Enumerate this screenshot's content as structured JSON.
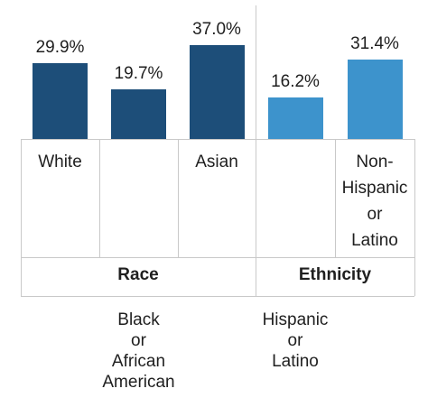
{
  "chart_data": {
    "type": "bar",
    "categories": [
      "White",
      "Black or African American",
      "Asian",
      "Hispanic or Latino",
      "Non-Hispanic or Latino"
    ],
    "category_label_lines": [
      [
        "White"
      ],
      [
        "Black",
        "or",
        "African",
        "American"
      ],
      [
        "Asian"
      ],
      [
        "Hispanic",
        "or",
        "Latino"
      ],
      [
        "Non-",
        "Hispanic",
        "or",
        "Latino"
      ]
    ],
    "values": [
      29.9,
      19.7,
      37.0,
      16.2,
      31.4
    ],
    "value_labels": [
      "29.9%",
      "19.7%",
      "37.0%",
      "16.2%",
      "31.4%"
    ],
    "groups": [
      {
        "name": "Race",
        "categories": [
          "White",
          "Black or African American",
          "Asian"
        ]
      },
      {
        "name": "Ethnicity",
        "categories": [
          "Hispanic or Latino",
          "Non-Hispanic or Latino"
        ]
      }
    ],
    "colors": [
      "#1d4e79",
      "#1d4e79",
      "#1d4e79",
      "#3d93cc",
      "#3d93cc"
    ],
    "ylim": [
      0,
      40
    ],
    "title": "",
    "xlabel": "",
    "ylabel": "",
    "grid": false,
    "legend": "none"
  }
}
